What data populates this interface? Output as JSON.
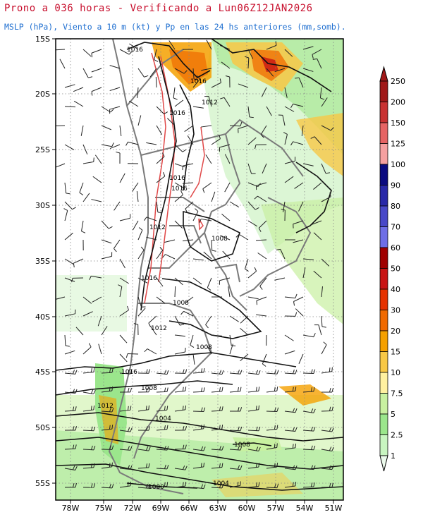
{
  "header": {
    "title": "Prono a 036 horas - Verificando a Lun06Z12JAN2026",
    "subtitle": "MSLP (hPa), Viento a 10 m (kt) y Pp en las 24 hs anteriores (mm,somb)."
  },
  "map": {
    "lat_labels": [
      "15S",
      "20S",
      "25S",
      "30S",
      "35S",
      "40S",
      "45S",
      "50S",
      "55S"
    ],
    "lon_labels": [
      "78W",
      "75W",
      "72W",
      "69W",
      "66W",
      "63W",
      "60W",
      "57W",
      "54W",
      "51W"
    ],
    "isobar_labels": [
      "1016",
      "1016",
      "1016",
      "1012",
      "1016",
      "1016",
      "1012",
      "1016",
      "1008",
      "1008",
      "1012",
      "1008",
      "1016",
      "1008",
      "1012",
      "1004",
      "1008",
      "1000",
      "1004"
    ]
  },
  "legend": {
    "values": [
      "250",
      "200",
      "150",
      "125",
      "100",
      "90",
      "80",
      "70",
      "60",
      "50",
      "40",
      "30",
      "20",
      "15",
      "10",
      "7.5",
      "5",
      "2.5",
      "1"
    ],
    "colors": [
      "#a01818",
      "#c83232",
      "#e66464",
      "#f5a0a0",
      "#0a0a80",
      "#2828a8",
      "#4848c8",
      "#6e6ee6",
      "#a00000",
      "#c81414",
      "#e63200",
      "#f06a00",
      "#f5a000",
      "#f8c846",
      "#fff0a0",
      "#c8f0a0",
      "#9be68c",
      "#c8f5c0",
      "#ecfaec"
    ]
  }
}
